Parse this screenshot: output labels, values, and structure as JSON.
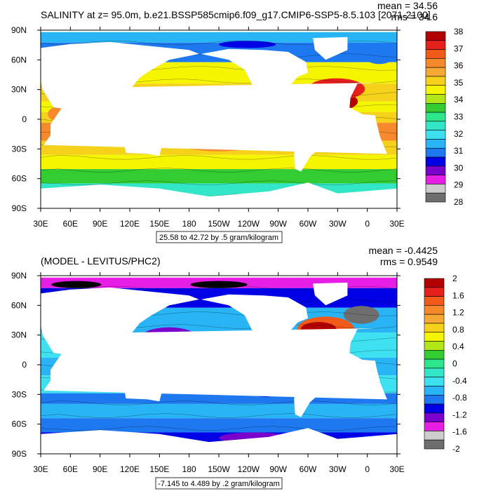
{
  "chart_data": [
    {
      "type": "heatmap",
      "title": "SALINITY at z=  95.0m, b.e21.BSSP585cmip6.f09_g17.CMIP6-SSP5-8.5.103 [2071-2100]",
      "stats": [
        "mean = 34.56",
        "rms = 34.6"
      ],
      "contour_info": "25.58 to 42.72 by .5 gram/kilogram",
      "x_ticks": [
        "30E",
        "60E",
        "90E",
        "120E",
        "150E",
        "180",
        "150W",
        "120W",
        "90W",
        "60W",
        "30W",
        "0",
        "30E"
      ],
      "y_ticks": [
        "90N",
        "60N",
        "30N",
        "0",
        "30S",
        "60S",
        "90S"
      ],
      "colorbar": [
        "38",
        "37",
        "36",
        "35",
        "34",
        "33",
        "32",
        "31",
        "30",
        "29",
        "28"
      ],
      "colors": [
        "#b30000",
        "#e6201a",
        "#f25a1a",
        "#f5892b",
        "#f5a833",
        "#f5d11a",
        "#f5f500",
        "#b3e619",
        "#33cc33",
        "#2ee68c",
        "#33e6c8",
        "#3de1f0",
        "#28b4f5",
        "#1e78f0",
        "#0000e6",
        "#7a00cc",
        "#e61ee6",
        "#cccccc",
        "#6e6e6e"
      ],
      "fill_colors": [
        "#b30000",
        "#e6201a",
        "#f25a1a",
        "#f5892b",
        "#f5d11a",
        "#f5f500",
        "#33cc33",
        "#33e6c8",
        "#3de1f0",
        "#28b4f5",
        "#1e78f0",
        "#0000e6",
        "#e61ee6",
        "#cccccc",
        "#6e6e6e"
      ]
    },
    {
      "type": "heatmap",
      "title": "(MODEL - LEVITUS/PHC2)",
      "stats": [
        "mean = -0.4425",
        "rms = 0.9549"
      ],
      "contour_info": "-7.145 to 4.489 by .2 gram/kilogram",
      "x_ticks": [
        "30E",
        "60E",
        "90E",
        "120E",
        "150E",
        "180",
        "150W",
        "120W",
        "90W",
        "60W",
        "30W",
        "0",
        "30E"
      ],
      "y_ticks": [
        "90N",
        "60N",
        "30N",
        "0",
        "30S",
        "60S",
        "90S"
      ],
      "colorbar": [
        "2",
        "1.6",
        "1.2",
        "0.8",
        "0.4",
        "0",
        "-0.4",
        "-0.8",
        "-1.2",
        "-1.6",
        "-2"
      ],
      "colors": [
        "#b30000",
        "#e6201a",
        "#f25a1a",
        "#f5892b",
        "#f5a833",
        "#f5d11a",
        "#f5f500",
        "#b3e619",
        "#33cc33",
        "#2ee68c",
        "#33e6c8",
        "#3de1f0",
        "#28b4f5",
        "#1e78f0",
        "#0000e6",
        "#7a00cc",
        "#e61ee6",
        "#cccccc",
        "#6e6e6e"
      ],
      "fill_colors": [
        "#b30000",
        "#e6201a",
        "#f25a1a",
        "#f5892b",
        "#f5d11a",
        "#b3e619",
        "#33cc33",
        "#33e6c8",
        "#3de1f0",
        "#28b4f5",
        "#1e78f0",
        "#0000e6",
        "#7a00cc",
        "#e61ee6",
        "#6e6e6e"
      ]
    }
  ]
}
